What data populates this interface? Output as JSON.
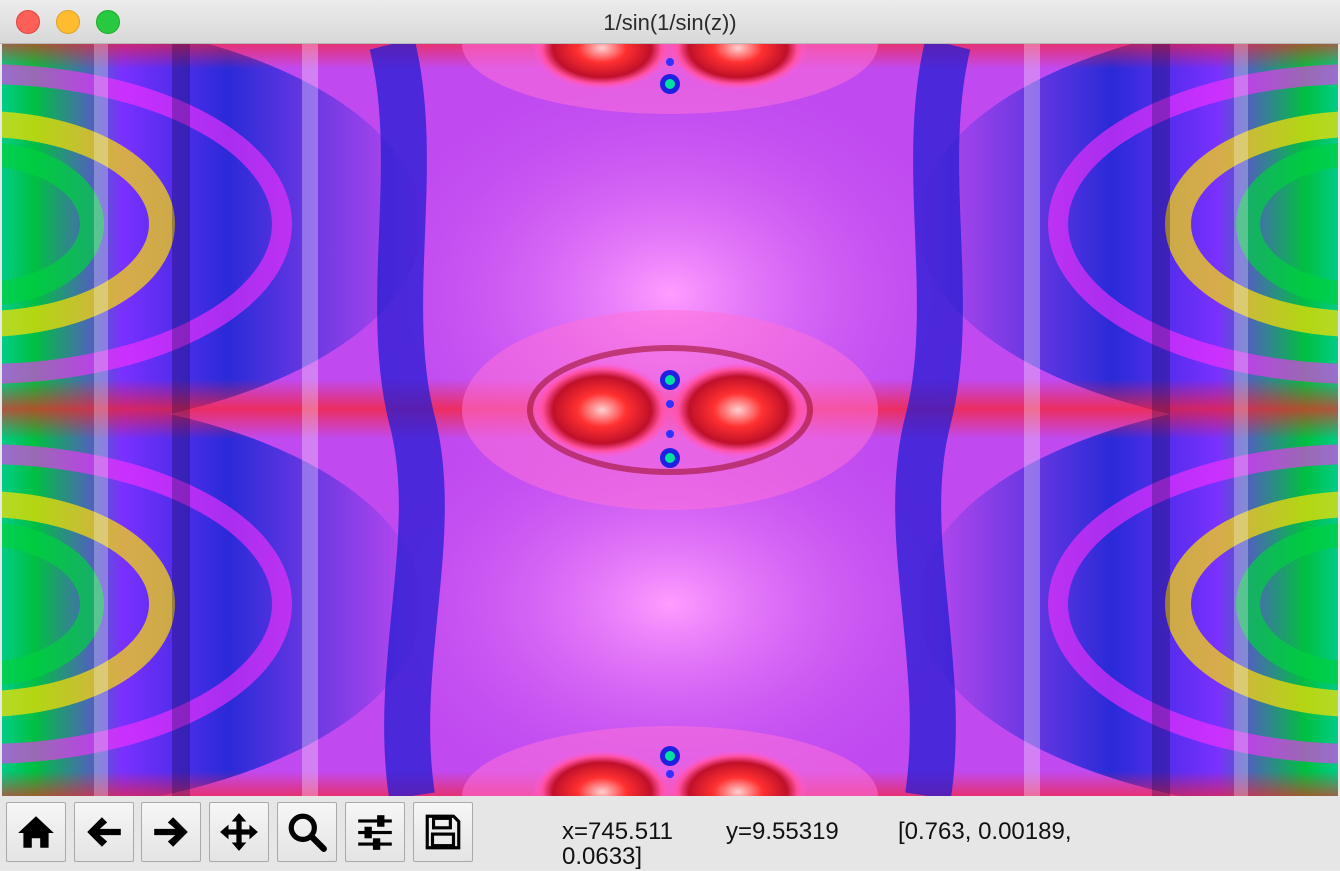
{
  "window": {
    "title": "1/sin(1/sin(z))"
  },
  "toolbar": {
    "buttons": [
      {
        "name": "home",
        "icon": "home-icon"
      },
      {
        "name": "back",
        "icon": "arrow-left-icon"
      },
      {
        "name": "forward",
        "icon": "arrow-right-icon"
      },
      {
        "name": "pan",
        "icon": "move-arrows-icon"
      },
      {
        "name": "zoom",
        "icon": "magnifier-icon"
      },
      {
        "name": "configure-subplots",
        "icon": "sliders-icon"
      },
      {
        "name": "save",
        "icon": "floppy-disk-icon"
      }
    ]
  },
  "status": {
    "x": "x=745.511",
    "y": "y=9.55319",
    "value_line1": "[0.763, 0.00189,",
    "value_line2": "0.0633]"
  },
  "colors": {
    "background_magenta": "#c04af0",
    "pole_red": "#ff2a2a",
    "band_blue": "#1e1ee0",
    "close": "#fe5f57",
    "minimize": "#febc2e",
    "maximize": "#28c840"
  }
}
